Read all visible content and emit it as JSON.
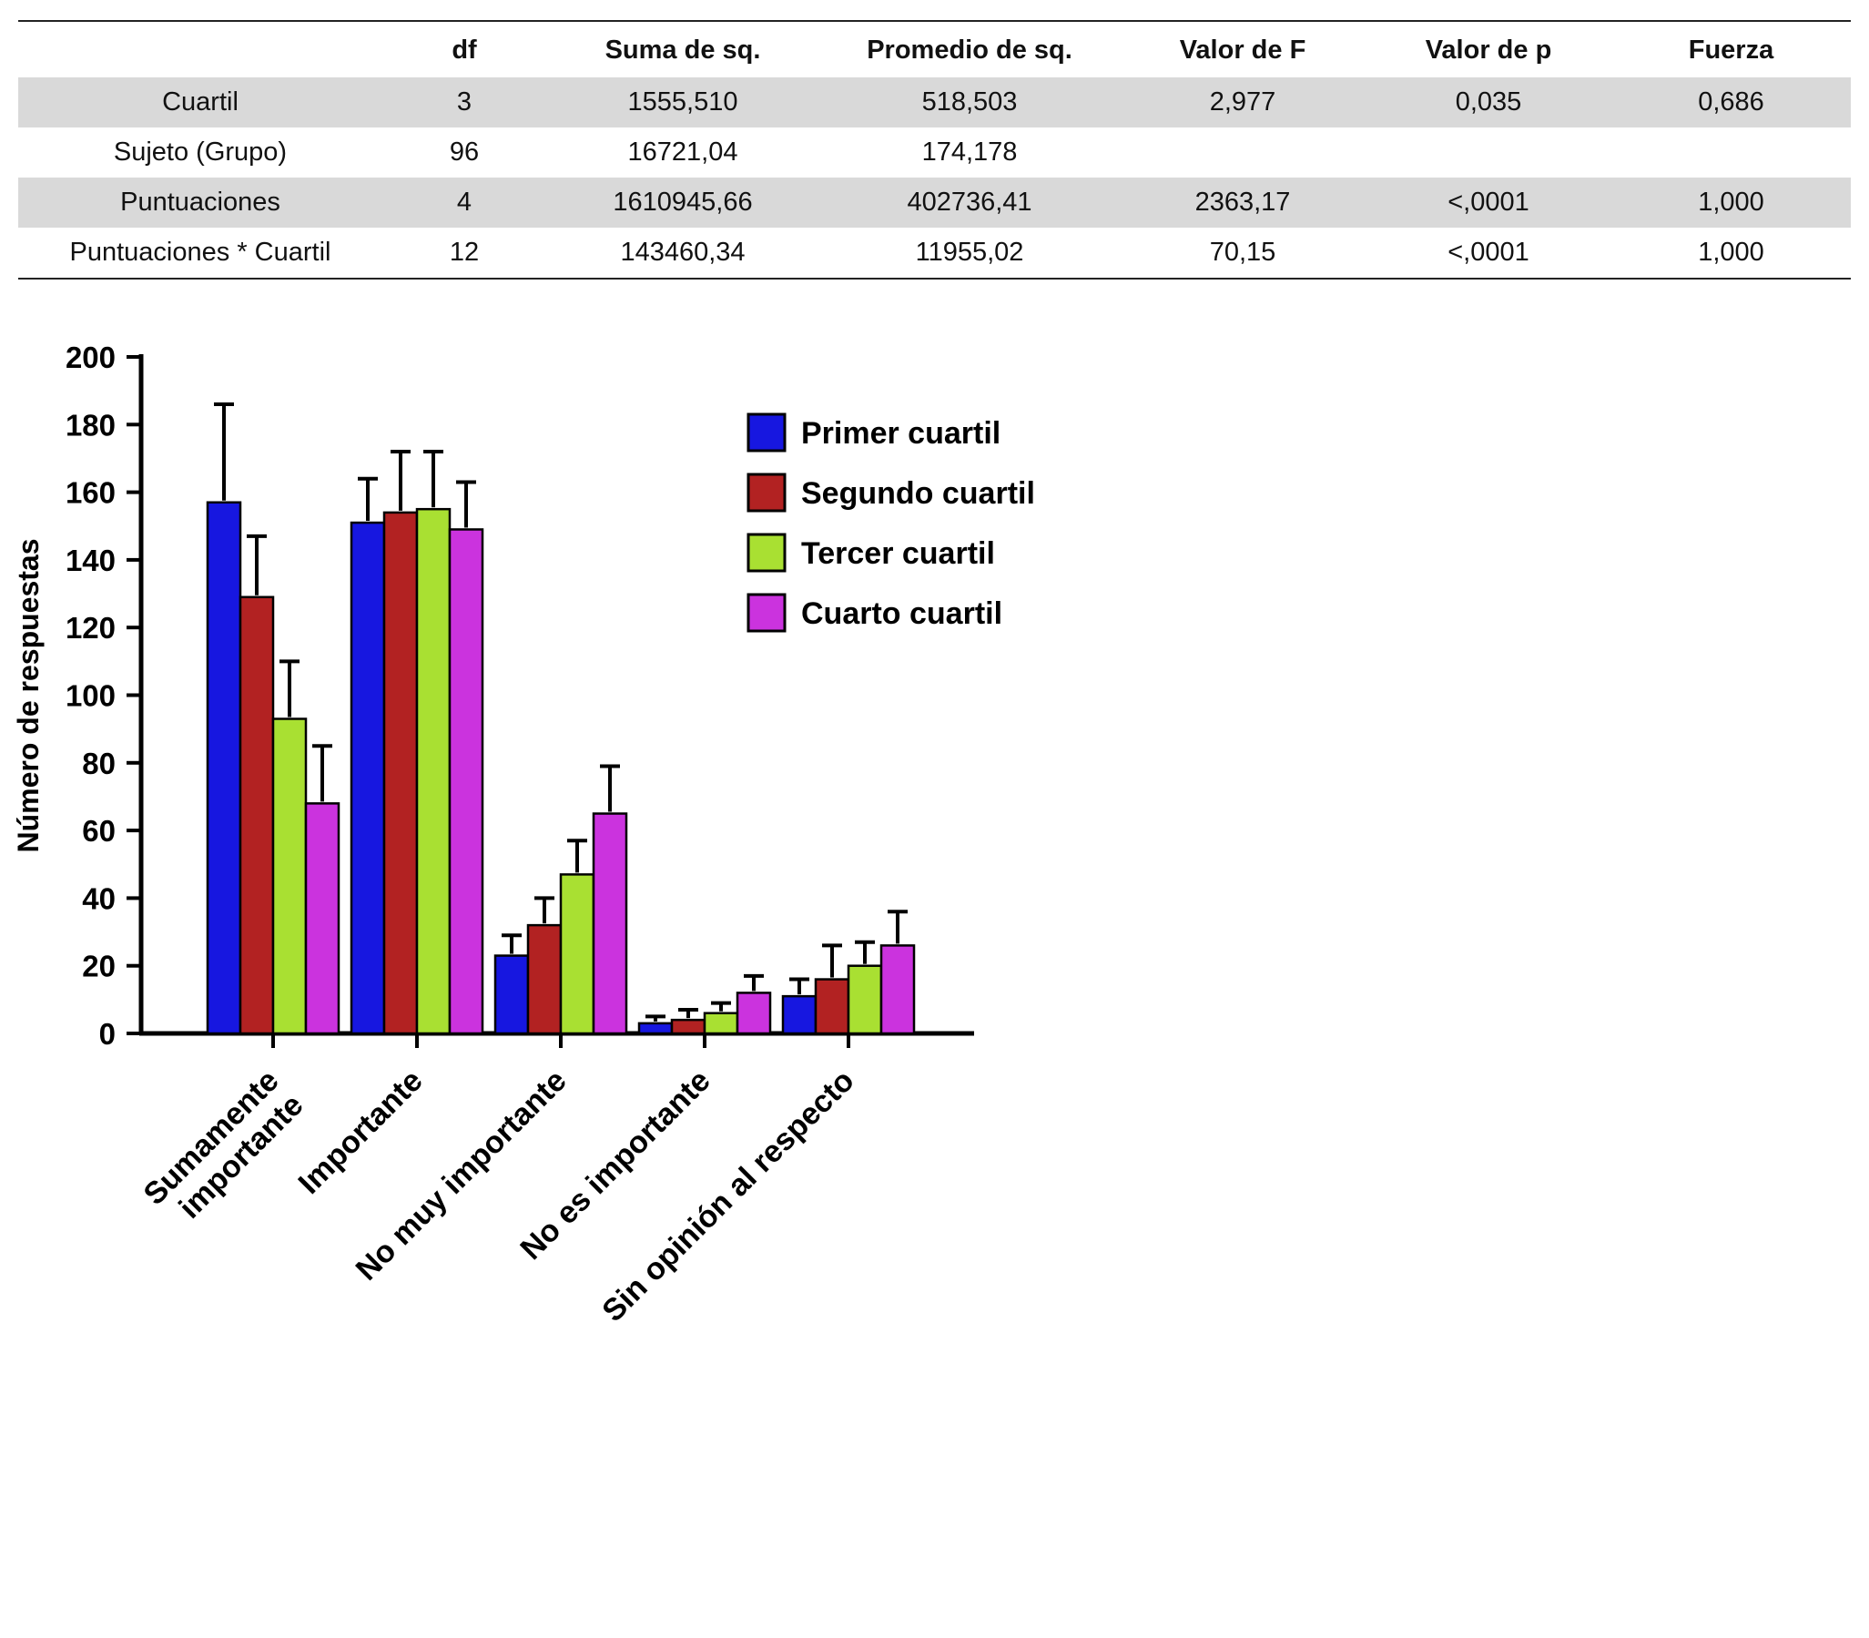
{
  "table": {
    "headers": [
      "",
      "df",
      "Suma de sq.",
      "Promedio de sq.",
      "Valor de F",
      "Valor de p",
      "Fuerza"
    ],
    "rows": [
      {
        "shaded": true,
        "cells": [
          "Cuartil",
          "3",
          "1555,510",
          "518,503",
          "2,977",
          "0,035",
          "0,686"
        ]
      },
      {
        "shaded": false,
        "cells": [
          "Sujeto (Grupo)",
          "96",
          "16721,04",
          "174,178",
          "",
          "",
          ""
        ]
      },
      {
        "shaded": true,
        "cells": [
          "Puntuaciones",
          "4",
          "1610945,66",
          "402736,41",
          "2363,17",
          "<,0001",
          "1,000"
        ]
      },
      {
        "shaded": false,
        "cells": [
          "Puntuaciones * Cuartil",
          "12",
          "143460,34",
          "11955,02",
          "70,15",
          "<,0001",
          "1,000"
        ]
      }
    ]
  },
  "chart_data": {
    "type": "bar",
    "title": "",
    "xlabel": "",
    "ylabel": "Número de respuestas",
    "ylim": [
      0,
      200
    ],
    "ytick_step": 20,
    "grid": false,
    "legend_position": "upper-right-inside",
    "categories": [
      "Sumamente\nimportante",
      "Importante",
      "No muy importante",
      "No es importante",
      "Sin opinión al respecto"
    ],
    "series": [
      {
        "name": "Primer cuartil",
        "color": "#1717e0",
        "values": [
          157,
          151,
          23,
          3,
          11
        ],
        "errors_plus": [
          29,
          13,
          6,
          2,
          5
        ]
      },
      {
        "name": "Segundo cuartil",
        "color": "#b22222",
        "values": [
          129,
          154,
          32,
          4,
          16
        ],
        "errors_plus": [
          18,
          18,
          8,
          3,
          10
        ]
      },
      {
        "name": "Tercer cuartil",
        "color": "#a9e032",
        "values": [
          93,
          155,
          47,
          6,
          20
        ],
        "errors_plus": [
          17,
          17,
          10,
          3,
          7
        ]
      },
      {
        "name": "Cuarto cuartil",
        "color": "#cb33de",
        "values": [
          68,
          149,
          65,
          12,
          26
        ],
        "errors_plus": [
          17,
          14,
          14,
          5,
          10
        ]
      }
    ]
  }
}
